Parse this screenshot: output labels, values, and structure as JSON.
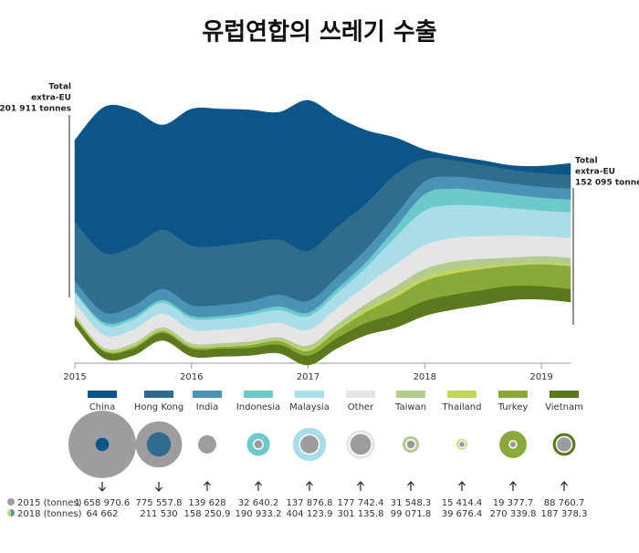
{
  "chart_data": {
    "type": "streamgraph",
    "title": "유럽연합의 쓰레기 수출",
    "start_annotation": [
      "Total",
      "extra-EU",
      "201 911 tonnes"
    ],
    "end_annotation": [
      "Total",
      "extra-EU",
      "152 095 tonnes"
    ],
    "x": [
      2015,
      2015.25,
      2015.5,
      2015.75,
      2016,
      2016.25,
      2016.5,
      2016.75,
      2017,
      2017.25,
      2017.5,
      2017.75,
      2018,
      2018.25,
      2018.5,
      2018.75,
      2019,
      2019.25
    ],
    "xlim": [
      2015,
      2019.25
    ],
    "xticks": [
      2015,
      2016,
      2017,
      2018,
      2019
    ],
    "bubble_row_labels": [
      "2015 (tonnes)",
      "2018 (tonnes)"
    ],
    "series": [
      {
        "name": "China",
        "color": "#0c5587",
        "values": [
          90000,
          160000,
          150000,
          115000,
          150000,
          150000,
          145000,
          140000,
          165000,
          120000,
          80000,
          40000,
          10000,
          5000,
          5000,
          5000,
          8000,
          13000
        ],
        "total_2015": 1658970.6,
        "total_2015_label": "1 658 970.6",
        "total_2018": 64662,
        "total_2018_label": "64 662"
      },
      {
        "name": "Hong Kong",
        "color": "#2e6d8d",
        "values": [
          65000,
          65000,
          65000,
          65000,
          65000,
          65000,
          65000,
          60000,
          55000,
          55000,
          50000,
          45000,
          25000,
          18000,
          16000,
          15000,
          15000,
          15000
        ],
        "total_2015": 775557.8,
        "total_2015_label": "775 557.8",
        "total_2018": 211530,
        "total_2018_label": "211 530"
      },
      {
        "name": "India",
        "color": "#4a93b4",
        "values": [
          11000,
          11000,
          12000,
          12000,
          12000,
          12000,
          12000,
          13000,
          13000,
          13000,
          14000,
          14000,
          14000,
          13000,
          13000,
          12000,
          12000,
          12000
        ],
        "total_2015": 139628,
        "total_2015_label": "139 628",
        "total_2018": 158250.9,
        "total_2018_label": "158 250.9"
      },
      {
        "name": "Indonesia",
        "color": "#6cc9cc",
        "values": [
          2000,
          3000,
          3000,
          3000,
          3000,
          3000,
          3000,
          4000,
          4000,
          5000,
          6000,
          10000,
          18000,
          18000,
          16000,
          15000,
          14000,
          14000
        ],
        "total_2015": 32640.2,
        "total_2015_label": "32 640.2",
        "total_2018": 190933.2,
        "total_2018_label": "190 933.2"
      },
      {
        "name": "Malaysia",
        "color": "#a9dde9",
        "values": [
          10000,
          11000,
          11000,
          12000,
          12000,
          12000,
          13000,
          14000,
          15000,
          16000,
          20000,
          30000,
          38000,
          36000,
          33000,
          30000,
          28000,
          28000
        ],
        "total_2015": 137876.8,
        "total_2015_label": "137 876.8",
        "total_2018": 404123.9,
        "total_2018_label": "404 123.9"
      },
      {
        "name": "Other",
        "color": "#e5e5e5",
        "values": [
          14000,
          14000,
          15000,
          15000,
          15000,
          15000,
          16000,
          16000,
          17000,
          18000,
          20000,
          24000,
          26000,
          26000,
          25000,
          24000,
          22000,
          22000
        ],
        "total_2015": 177742.4,
        "total_2015_label": "177 742.4",
        "total_2018": 301135.8,
        "total_2018_label": "301 135.8"
      },
      {
        "name": "Taiwan",
        "color": "#b4cb8e",
        "values": [
          2000,
          2000,
          3000,
          3000,
          3000,
          3000,
          3000,
          3000,
          4000,
          5000,
          6000,
          8000,
          9000,
          9000,
          8000,
          7000,
          7000,
          7000
        ],
        "total_2015": 31548.3,
        "total_2015_label": "31 548.3",
        "total_2018": 99071.8,
        "total_2018_label": "99 071.8"
      },
      {
        "name": "Thailand",
        "color": "#c3d65a",
        "values": [
          1000,
          1000,
          1000,
          1000,
          1000,
          1000,
          1000,
          1000,
          2000,
          2000,
          3000,
          4000,
          4000,
          4000,
          3000,
          2000,
          2000,
          2000
        ],
        "total_2015": 15414.4,
        "total_2015_label": "15 414.4",
        "total_2018": 39676.4,
        "total_2018_label": "39 676.4"
      },
      {
        "name": "Turkey",
        "color": "#8ba93a",
        "values": [
          1000,
          1000,
          2000,
          2000,
          2000,
          2000,
          3000,
          4000,
          5000,
          8000,
          12000,
          18000,
          22000,
          23000,
          23000,
          22000,
          24000,
          25000
        ],
        "total_2015": 19377.7,
        "total_2015_label": "19 377.7",
        "total_2018": 270339.8,
        "total_2018_label": "270 339.8"
      },
      {
        "name": "Vietnam",
        "color": "#5c791e",
        "values": [
          7000,
          7000,
          7000,
          8000,
          8000,
          8000,
          8000,
          9000,
          10000,
          11000,
          13000,
          15000,
          16000,
          16000,
          16000,
          15000,
          14000,
          14000
        ],
        "total_2015": 88760.7,
        "total_2015_label": "88 760.7",
        "total_2018": 187378.3,
        "total_2018_label": "187 378.3"
      }
    ]
  }
}
